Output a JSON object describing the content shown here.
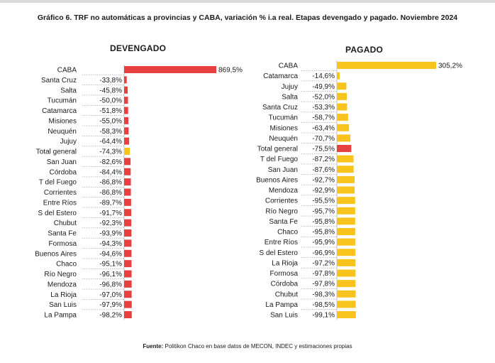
{
  "title": "Gráfico 6. TRF no automáticas a provincias y CABA, variación % i.a real. Etapas devengado y pagado. Noviembre 2024",
  "source": {
    "label": "Fuente:",
    "text": " Politikon Chaco en base datos de MECON, INDEC y estimaciones propias"
  },
  "colors": {
    "red": "#e84040",
    "yellow": "#f8c31c",
    "axis": "#c8c8c8",
    "dash": "#9a9a9a"
  },
  "chart_data": [
    {
      "type": "bar",
      "orientation": "horizontal",
      "title": "DEVENGADO",
      "categories": [
        "CABA",
        "Santa Cruz",
        "Salta",
        "Tucumán",
        "Catamarca",
        "Misiones",
        "Neuquén",
        "Jujuy",
        "Total general",
        "San Juan",
        "Córdoba",
        "T del Fuego",
        "Corrientes",
        "Entre Ríos",
        "S del Estero",
        "Chubut",
        "Santa Fe",
        "Formosa",
        "Buenos Aires",
        "Chaco",
        "Río Negro",
        "Mendoza",
        "La Rioja",
        "San Luis",
        "La Pampa"
      ],
      "values": [
        869.5,
        -33.8,
        -45.8,
        -50.0,
        -51.8,
        -55.0,
        -58.3,
        -64.4,
        -74.3,
        -82.6,
        -84.4,
        -86.8,
        -86.8,
        -89.7,
        -91.7,
        -92.3,
        -93.9,
        -94.3,
        -94.6,
        -95.1,
        -96.1,
        -96.8,
        -97.0,
        -97.9,
        -98.2
      ],
      "labels": [
        "869,5%",
        "-33,8%",
        "-45,8%",
        "-50,0%",
        "-51,8%",
        "-55,0%",
        "-58,3%",
        "-64,4%",
        "-74,3%",
        "-82,6%",
        "-84,4%",
        "-86,8%",
        "-86,8%",
        "-89,7%",
        "-91,7%",
        "-92,3%",
        "-93,9%",
        "-94,3%",
        "-94,6%",
        "-95,1%",
        "-96,1%",
        "-96,8%",
        "-97,0%",
        "-97,9%",
        "-98,2%"
      ],
      "colors": [
        "red",
        "red",
        "red",
        "red",
        "red",
        "red",
        "red",
        "red",
        "yellow",
        "red",
        "red",
        "red",
        "red",
        "red",
        "red",
        "red",
        "red",
        "red",
        "red",
        "red",
        "red",
        "red",
        "red",
        "red",
        "red"
      ]
    },
    {
      "type": "bar",
      "orientation": "horizontal",
      "title": "PAGADO",
      "categories": [
        "CABA",
        "Catamarca",
        "Jujuy",
        "Salta",
        "Santa Cruz",
        "Tucumán",
        "Misiones",
        "Neuquén",
        "Total general",
        "T del Fuego",
        "San Juan",
        "Buenos Aires",
        "Mendoza",
        "Corrientes",
        "Río Negro",
        "Santa Fe",
        "Chaco",
        "Entre Ríos",
        "S del Estero",
        "La Rioja",
        "Formosa",
        "Córdoba",
        "Chubut",
        "La Pampa",
        "San Luis"
      ],
      "values": [
        305.2,
        -14.6,
        -49.9,
        -52.0,
        -53.3,
        -58.7,
        -63.4,
        -70.7,
        -75.5,
        -87.2,
        -87.6,
        -92.7,
        -92.9,
        -95.5,
        -95.7,
        -95.8,
        -95.8,
        -95.9,
        -96.9,
        -97.2,
        -97.8,
        -97.8,
        -98.3,
        -98.5,
        -99.1
      ],
      "labels": [
        "305,2%",
        "-14,6%",
        "-49,9%",
        "-52,0%",
        "-53,3%",
        "-58,7%",
        "-63,4%",
        "-70,7%",
        "-75,5%",
        "-87,2%",
        "-87,6%",
        "-92,7%",
        "-92,9%",
        "-95,5%",
        "-95,7%",
        "-95,8%",
        "-95,8%",
        "-95,9%",
        "-96,9%",
        "-97,2%",
        "-97,8%",
        "-97,8%",
        "-98,3%",
        "-98,5%",
        "-99,1%"
      ],
      "colors": [
        "yellow",
        "yellow",
        "yellow",
        "yellow",
        "yellow",
        "yellow",
        "yellow",
        "yellow",
        "red",
        "yellow",
        "yellow",
        "yellow",
        "yellow",
        "yellow",
        "yellow",
        "yellow",
        "yellow",
        "yellow",
        "yellow",
        "yellow",
        "yellow",
        "yellow",
        "yellow",
        "yellow",
        "yellow"
      ]
    }
  ]
}
